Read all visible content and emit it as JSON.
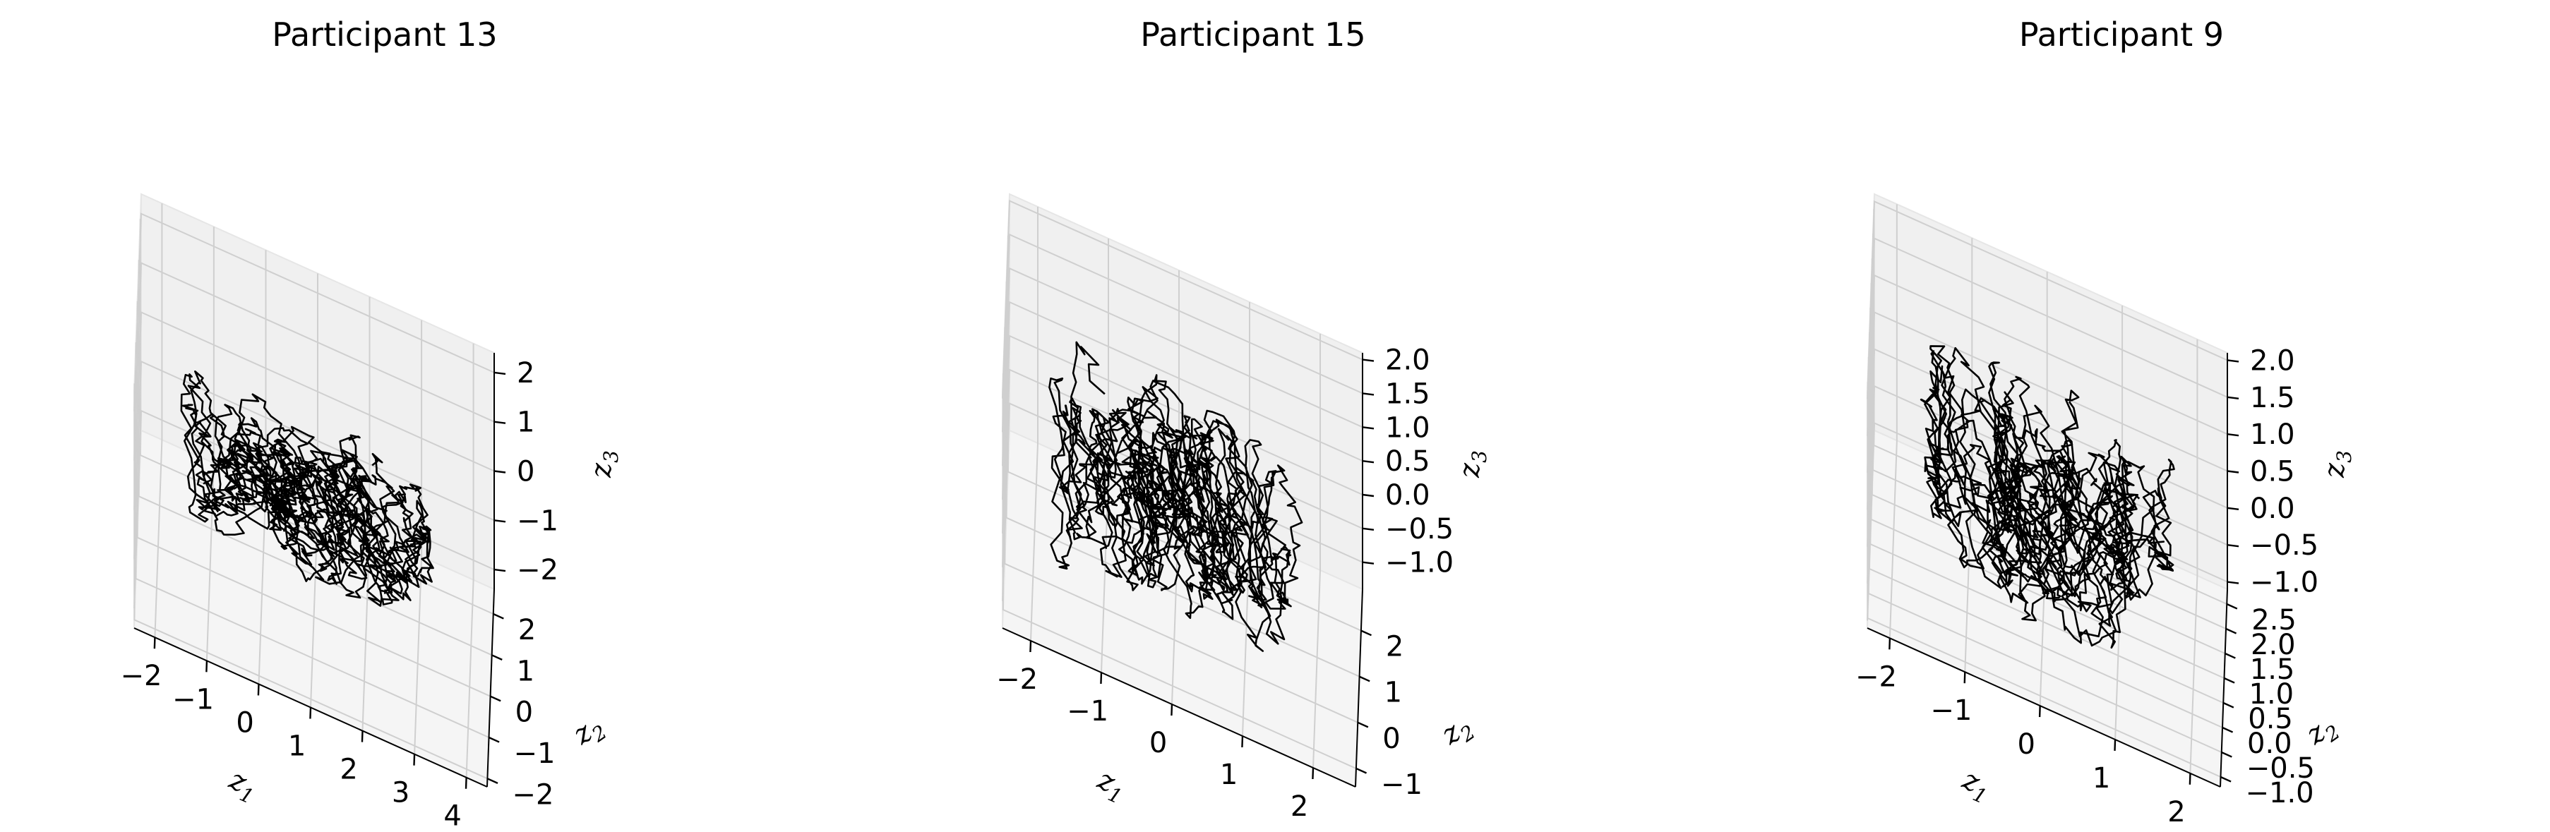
{
  "chart_data": [
    {
      "type": "line",
      "title": "Participant 13",
      "xlabel": "z1",
      "ylabel": "z2",
      "zlabel": "z3",
      "xlim": [
        -2.4,
        4.4
      ],
      "ylim": [
        -2.2,
        2.6
      ],
      "zlim": [
        -2.4,
        2.4
      ],
      "xticks": [
        -2,
        -1,
        0,
        1,
        2,
        3,
        4
      ],
      "yticks": [
        -2,
        -1,
        0,
        1,
        2
      ],
      "zticks": [
        -2,
        -1,
        0,
        1,
        2
      ],
      "xtick_labels": [
        "−2",
        "−1",
        "0",
        "1",
        "2",
        "3",
        "4"
      ],
      "ytick_labels": [
        "−2",
        "−1",
        "0",
        "1",
        "2"
      ],
      "ztick_labels": [
        "−2",
        "−1",
        "0",
        "1",
        "2"
      ],
      "grid": true,
      "line_color": "#000000",
      "attractor": {
        "n_points": 1500,
        "seed": 13,
        "x_center": 0.9,
        "x_spread": 2.6,
        "y_spread": 1.0,
        "z_spread": 1.4
      }
    },
    {
      "type": "line",
      "title": "Participant 15",
      "xlabel": "z1",
      "ylabel": "z2",
      "zlabel": "z3",
      "xlim": [
        -2.4,
        2.6
      ],
      "ylim": [
        -1.4,
        2.9
      ],
      "zlim": [
        -1.4,
        2.1
      ],
      "xticks": [
        -2,
        -1,
        0,
        1,
        2
      ],
      "yticks": [
        -1,
        0,
        1,
        2
      ],
      "zticks": [
        -1.0,
        -0.5,
        0.0,
        0.5,
        1.0,
        1.5,
        2.0
      ],
      "xtick_labels": [
        "−2",
        "−1",
        "0",
        "1",
        "2"
      ],
      "ytick_labels": [
        "−1",
        "0",
        "1",
        "2"
      ],
      "ztick_labels": [
        "−1.0",
        "−0.5",
        "0.0",
        "0.5",
        "1.0",
        "1.5",
        "2.0"
      ],
      "grid": true,
      "line_color": "#000000",
      "attractor": {
        "n_points": 1500,
        "seed": 15,
        "x_center": 0.0,
        "x_spread": 1.9,
        "y_spread": 1.2,
        "z_spread": 1.5
      }
    },
    {
      "type": "line",
      "title": "Participant 9",
      "xlabel": "z1",
      "ylabel": "z2",
      "zlabel": "z3",
      "xlim": [
        -2.3,
        2.4
      ],
      "ylim": [
        -1.2,
        2.8
      ],
      "zlim": [
        -1.1,
        2.1
      ],
      "xticks": [
        -2,
        -1,
        0,
        1,
        2
      ],
      "yticks": [
        -1.0,
        -0.5,
        0.0,
        0.5,
        1.0,
        1.5,
        2.0,
        2.5
      ],
      "zticks": [
        -1.0,
        -0.5,
        0.0,
        0.5,
        1.0,
        1.5,
        2.0
      ],
      "xtick_labels": [
        "−2",
        "−1",
        "0",
        "1",
        "2"
      ],
      "ytick_labels": [
        "−1.0",
        "−0.5",
        "0.0",
        "0.5",
        "1.0",
        "1.5",
        "2.0",
        "2.5"
      ],
      "ztick_labels": [
        "−1.0",
        "−0.5",
        "0.0",
        "0.5",
        "1.0",
        "1.5",
        "2.0"
      ],
      "grid": true,
      "line_color": "#000000",
      "attractor": {
        "n_points": 1500,
        "seed": 9,
        "x_center": 0.0,
        "x_spread": 1.8,
        "y_spread": 1.3,
        "z_spread": 1.4
      }
    }
  ]
}
